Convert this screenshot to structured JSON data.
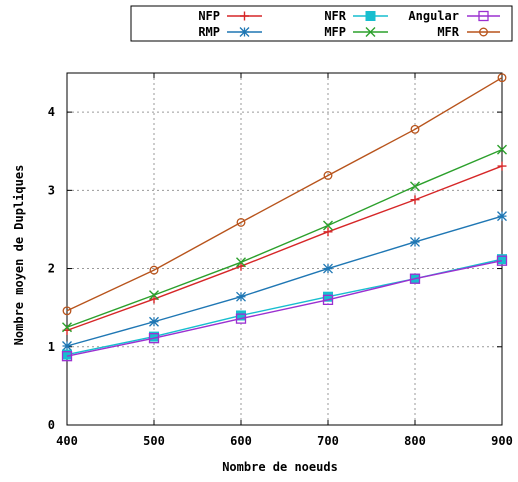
{
  "chart_data": {
    "type": "line",
    "xlabel": "Nombre de noeuds",
    "ylabel": "Nombre moyen de Dupliques",
    "xlim": [
      400,
      900
    ],
    "ylim": [
      0,
      4.5
    ],
    "x_ticks": [
      "400",
      "500",
      "600",
      "700",
      "800",
      "900"
    ],
    "y_ticks": [
      "0",
      "1",
      "2",
      "3",
      "4"
    ],
    "grid": true,
    "legend_position": "top-right, outside plot",
    "x": [
      400,
      500,
      600,
      700,
      800,
      900
    ],
    "series": [
      {
        "name": "NFP",
        "color": "#d62728",
        "marker": "plus",
        "values": [
          1.21,
          1.61,
          2.03,
          2.47,
          2.88,
          3.31
        ]
      },
      {
        "name": "RMP",
        "color": "#1f77b4",
        "marker": "star",
        "values": [
          1.01,
          1.32,
          1.64,
          2.0,
          2.34,
          2.67
        ]
      },
      {
        "name": "NFR",
        "color": "#17becf",
        "marker": "filled-square",
        "values": [
          0.9,
          1.13,
          1.4,
          1.64,
          1.87,
          2.12
        ]
      },
      {
        "name": "MFP",
        "color": "#2ca02c",
        "marker": "cross",
        "values": [
          1.25,
          1.66,
          2.08,
          2.55,
          3.05,
          3.52
        ]
      },
      {
        "name": "Angular",
        "color": "#9b30d0",
        "marker": "open-square",
        "values": [
          0.88,
          1.11,
          1.36,
          1.6,
          1.87,
          2.1
        ]
      },
      {
        "name": "MFR",
        "color": "#b8541c",
        "marker": "circle",
        "values": [
          1.46,
          1.98,
          2.59,
          3.19,
          3.78,
          4.44
        ]
      }
    ]
  }
}
